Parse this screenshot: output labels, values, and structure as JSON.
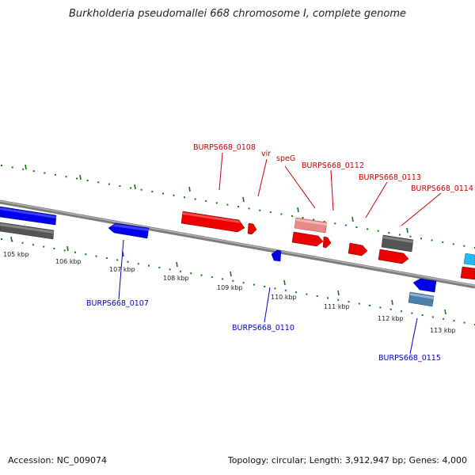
{
  "title": "Burkholderia pseudomallei 668 chromosome I, complete genome",
  "footer": {
    "accession": "Accession: NC_009074",
    "summary": "Topology: circular; Length: 3,912,947 bp; Genes: 4,000"
  },
  "scale_labels": [
    "105 kbp",
    "106 kbp",
    "107 kbp",
    "108 kbp",
    "109 kbp",
    "110 kbp",
    "111 kbp",
    "112 kbp",
    "113 kbp"
  ],
  "gene_labels": {
    "top": [
      "BURPS668_0108",
      "vir",
      "speG",
      "BURPS668_0112",
      "BURPS668_0113",
      "BURPS668_0114"
    ],
    "bottom": [
      "BURPS668_0107",
      "BURPS668_0110",
      "BURPS668_0115"
    ]
  },
  "colors": {
    "forward_strand": "#ee0000",
    "reverse_strand": "#0000ee",
    "other": "#555555",
    "highlight_forward": "#e88a8a",
    "highlight_reverse": "#4f7fa8",
    "tick_marks": "#117711",
    "top_label": "#cc0000",
    "bottom_label": "#0000cc",
    "backbone": "#888888"
  }
}
